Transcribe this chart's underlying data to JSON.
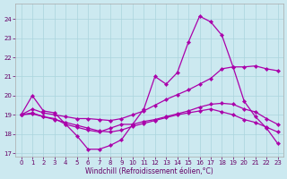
{
  "background_color": "#cce9f0",
  "grid_color": "#aad4dd",
  "line_color": "#aa00aa",
  "xlabel": "Windchill (Refroidissement éolien,°C)",
  "xlim": [
    -0.5,
    23.5
  ],
  "ylim": [
    16.8,
    24.8
  ],
  "yticks": [
    17,
    18,
    19,
    20,
    21,
    22,
    23,
    24
  ],
  "xticks": [
    0,
    1,
    2,
    3,
    4,
    5,
    6,
    7,
    8,
    9,
    10,
    11,
    12,
    13,
    14,
    15,
    16,
    17,
    18,
    19,
    20,
    21,
    22,
    23
  ],
  "line1_x": [
    0,
    1,
    2,
    3,
    4,
    5,
    6,
    7,
    8,
    9,
    10,
    11,
    12,
    13,
    14,
    15,
    16,
    17,
    18,
    19,
    20,
    21,
    22,
    23
  ],
  "line1_y": [
    19.0,
    20.0,
    19.2,
    19.1,
    18.5,
    17.9,
    17.2,
    17.2,
    17.4,
    17.7,
    18.5,
    19.3,
    21.0,
    20.6,
    21.2,
    22.8,
    24.15,
    23.85,
    23.15,
    21.5,
    19.7,
    18.9,
    18.3,
    17.5
  ],
  "line2_x": [
    0,
    1,
    2,
    3,
    4,
    5,
    6,
    7,
    8,
    9,
    10,
    11,
    12,
    13,
    14,
    15,
    16,
    17,
    18,
    19,
    20,
    21,
    22,
    23
  ],
  "line2_y": [
    19.0,
    19.3,
    19.1,
    19.0,
    18.9,
    18.8,
    18.8,
    18.75,
    18.7,
    18.8,
    19.0,
    19.2,
    19.5,
    19.8,
    20.05,
    20.3,
    20.6,
    20.9,
    21.4,
    21.5,
    21.5,
    21.55,
    21.4,
    21.3
  ],
  "line3_x": [
    0,
    1,
    2,
    3,
    4,
    5,
    6,
    7,
    8,
    9,
    10,
    11,
    12,
    13,
    14,
    15,
    16,
    17,
    18,
    19,
    20,
    21,
    22,
    23
  ],
  "line3_y": [
    19.0,
    19.1,
    18.9,
    18.8,
    18.5,
    18.35,
    18.2,
    18.1,
    18.3,
    18.5,
    18.5,
    18.65,
    18.75,
    18.9,
    19.05,
    19.2,
    19.4,
    19.55,
    19.6,
    19.55,
    19.3,
    19.15,
    18.8,
    18.5
  ],
  "line4_x": [
    0,
    1,
    2,
    3,
    4,
    5,
    6,
    7,
    8,
    9,
    10,
    11,
    12,
    13,
    14,
    15,
    16,
    17,
    18,
    19,
    20,
    21,
    22,
    23
  ],
  "line4_y": [
    19.0,
    19.05,
    18.9,
    18.75,
    18.6,
    18.45,
    18.3,
    18.15,
    18.1,
    18.2,
    18.4,
    18.55,
    18.7,
    18.85,
    19.0,
    19.1,
    19.2,
    19.3,
    19.15,
    19.0,
    18.75,
    18.6,
    18.35,
    18.1
  ]
}
